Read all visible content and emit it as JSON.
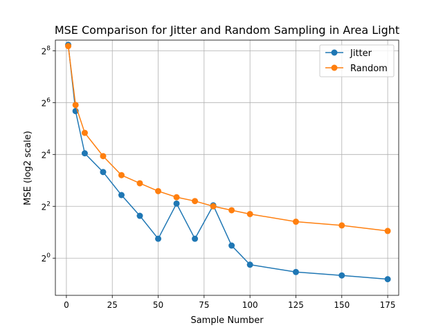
{
  "chart_data": {
    "type": "line",
    "title": "MSE Comparison for Jitter and Random Sampling in Area Light",
    "xlabel": "Sample Number",
    "ylabel": "MSE (log2 scale)",
    "y_scale": "log2",
    "xlim": [
      -6,
      181
    ],
    "ylim": [
      0.37,
      340
    ],
    "grid": true,
    "legend_position": "upper right",
    "x_ticks": [
      0,
      25,
      50,
      75,
      100,
      125,
      150,
      175
    ],
    "x_tick_labels": [
      "0",
      "25",
      "50",
      "75",
      "100",
      "125",
      "150",
      "175"
    ],
    "y_ticks": [
      1,
      4,
      16,
      64,
      256
    ],
    "y_tick_bases": [
      "2",
      "2",
      "2",
      "2",
      "2"
    ],
    "y_tick_exponents": [
      "0",
      "2",
      "4",
      "6",
      "8"
    ],
    "x": [
      1,
      5,
      10,
      20,
      30,
      40,
      50,
      60,
      70,
      80,
      90,
      100,
      125,
      150,
      175
    ],
    "series": [
      {
        "name": "Jitter",
        "color": "#1f77b4",
        "values": [
          300,
          51,
          16.5,
          10,
          5.4,
          3.1,
          1.68,
          4.3,
          1.68,
          4.1,
          1.4,
          0.84,
          0.69,
          0.63,
          0.57
        ]
      },
      {
        "name": "Random",
        "color": "#ff7f0e",
        "values": [
          290,
          60,
          28.5,
          15.3,
          9.2,
          7.4,
          6.0,
          5.1,
          4.6,
          4.0,
          3.6,
          3.25,
          2.65,
          2.4,
          2.07
        ]
      }
    ]
  }
}
